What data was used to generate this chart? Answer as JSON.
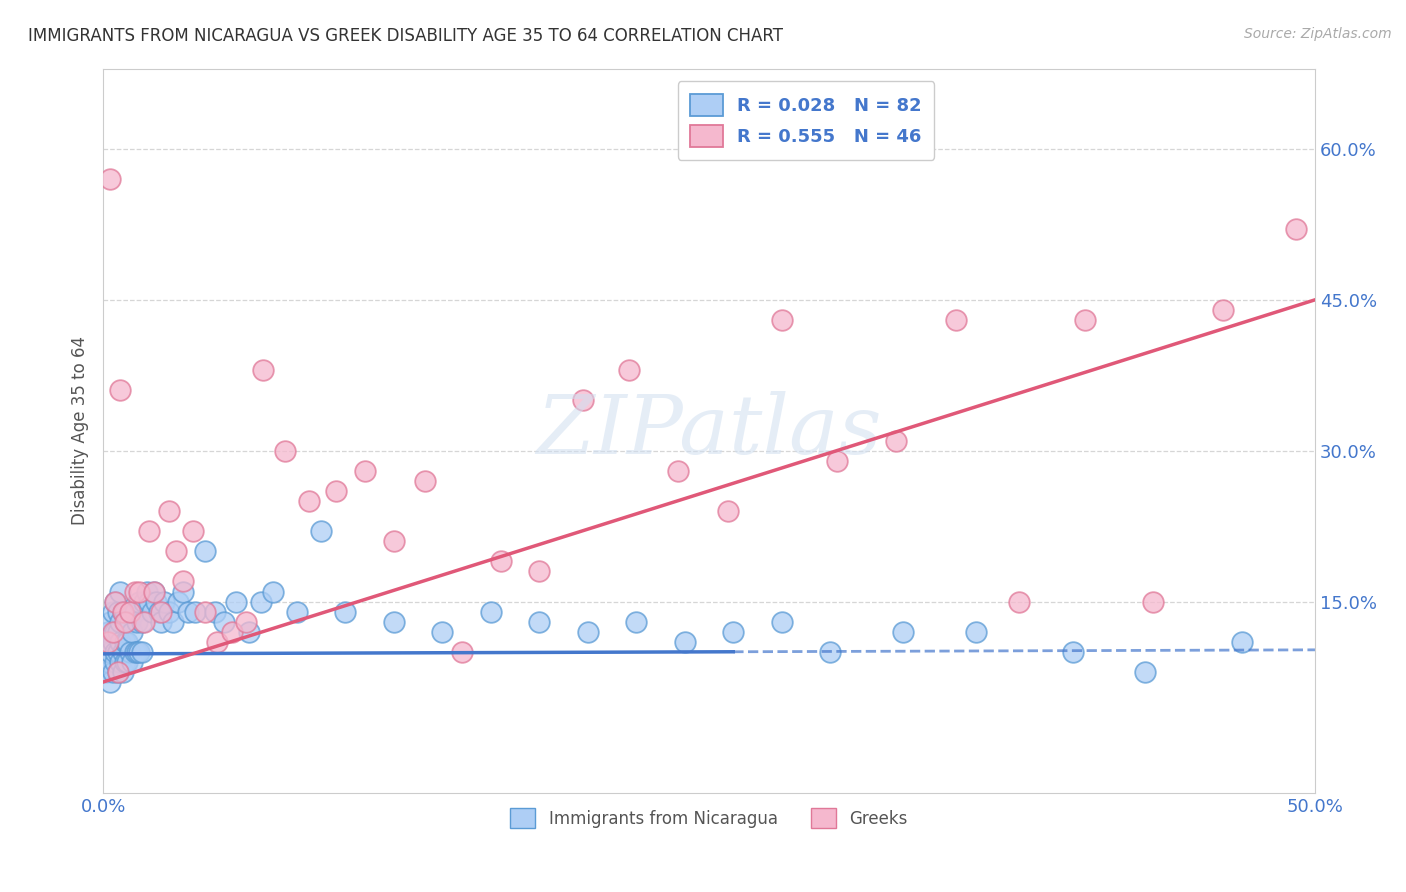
{
  "title": "IMMIGRANTS FROM NICARAGUA VS GREEK DISABILITY AGE 35 TO 64 CORRELATION CHART",
  "source": "Source: ZipAtlas.com",
  "ylabel": "Disability Age 35 to 64",
  "xlim": [
    0.0,
    0.5
  ],
  "ylim": [
    -0.04,
    0.68
  ],
  "xticks": [
    0.0,
    0.1,
    0.2,
    0.3,
    0.4,
    0.5
  ],
  "xticklabels": [
    "0.0%",
    "",
    "",
    "",
    "",
    "50.0%"
  ],
  "yticks": [
    0.15,
    0.3,
    0.45,
    0.6
  ],
  "yticklabels": [
    "15.0%",
    "30.0%",
    "45.0%",
    "60.0%"
  ],
  "legend_r1": "R = 0.028",
  "legend_n1": "N = 82",
  "legend_r2": "R = 0.555",
  "legend_n2": "N = 46",
  "color_nicaragua": "#aecef5",
  "color_greek": "#f5b8ce",
  "color_nicaragua_edge": "#5b9bd5",
  "color_greek_edge": "#e07898",
  "color_nicaragua_line": "#4477cc",
  "color_greek_line": "#e05878",
  "color_axis_labels": "#4477cc",
  "watermark_color": "#d0dff0",
  "background_color": "#ffffff",
  "grid_color": "#cccccc",
  "nicaragua_line_intercept": 0.098,
  "nicaragua_line_slope": 0.008,
  "nicaragua_line_solid_end": 0.26,
  "greek_line_intercept": 0.07,
  "greek_line_slope": 0.76,
  "nicaragua_x": [
    0.001,
    0.002,
    0.002,
    0.003,
    0.003,
    0.003,
    0.004,
    0.004,
    0.004,
    0.005,
    0.005,
    0.005,
    0.005,
    0.006,
    0.006,
    0.006,
    0.006,
    0.007,
    0.007,
    0.007,
    0.007,
    0.008,
    0.008,
    0.008,
    0.009,
    0.009,
    0.009,
    0.01,
    0.01,
    0.01,
    0.011,
    0.011,
    0.012,
    0.012,
    0.013,
    0.013,
    0.014,
    0.014,
    0.015,
    0.015,
    0.016,
    0.016,
    0.017,
    0.018,
    0.019,
    0.02,
    0.021,
    0.022,
    0.023,
    0.024,
    0.025,
    0.027,
    0.029,
    0.031,
    0.033,
    0.035,
    0.038,
    0.042,
    0.046,
    0.05,
    0.055,
    0.06,
    0.065,
    0.07,
    0.08,
    0.09,
    0.1,
    0.12,
    0.14,
    0.16,
    0.18,
    0.2,
    0.22,
    0.24,
    0.26,
    0.28,
    0.3,
    0.33,
    0.36,
    0.4,
    0.43,
    0.47
  ],
  "nicaragua_y": [
    0.08,
    0.09,
    0.12,
    0.07,
    0.1,
    0.13,
    0.08,
    0.11,
    0.14,
    0.09,
    0.1,
    0.12,
    0.15,
    0.08,
    0.1,
    0.12,
    0.14,
    0.09,
    0.11,
    0.13,
    0.16,
    0.08,
    0.1,
    0.14,
    0.09,
    0.11,
    0.14,
    0.09,
    0.11,
    0.13,
    0.1,
    0.13,
    0.09,
    0.12,
    0.1,
    0.14,
    0.1,
    0.13,
    0.1,
    0.15,
    0.1,
    0.13,
    0.15,
    0.16,
    0.15,
    0.14,
    0.16,
    0.15,
    0.14,
    0.13,
    0.15,
    0.14,
    0.13,
    0.15,
    0.16,
    0.14,
    0.14,
    0.2,
    0.14,
    0.13,
    0.15,
    0.12,
    0.15,
    0.16,
    0.14,
    0.22,
    0.14,
    0.13,
    0.12,
    0.14,
    0.13,
    0.12,
    0.13,
    0.11,
    0.12,
    0.13,
    0.1,
    0.12,
    0.12,
    0.1,
    0.08,
    0.11
  ],
  "greek_x": [
    0.002,
    0.003,
    0.004,
    0.005,
    0.006,
    0.007,
    0.008,
    0.009,
    0.011,
    0.013,
    0.015,
    0.017,
    0.019,
    0.021,
    0.024,
    0.027,
    0.03,
    0.033,
    0.037,
    0.042,
    0.047,
    0.053,
    0.059,
    0.066,
    0.075,
    0.085,
    0.096,
    0.108,
    0.12,
    0.133,
    0.148,
    0.164,
    0.18,
    0.198,
    0.217,
    0.237,
    0.258,
    0.28,
    0.303,
    0.327,
    0.352,
    0.378,
    0.405,
    0.433,
    0.462,
    0.492
  ],
  "greek_y": [
    0.11,
    0.57,
    0.12,
    0.15,
    0.08,
    0.36,
    0.14,
    0.13,
    0.14,
    0.16,
    0.16,
    0.13,
    0.22,
    0.16,
    0.14,
    0.24,
    0.2,
    0.17,
    0.22,
    0.14,
    0.11,
    0.12,
    0.13,
    0.38,
    0.3,
    0.25,
    0.26,
    0.28,
    0.21,
    0.27,
    0.1,
    0.19,
    0.18,
    0.35,
    0.38,
    0.28,
    0.24,
    0.43,
    0.29,
    0.31,
    0.43,
    0.15,
    0.43,
    0.15,
    0.44,
    0.52
  ]
}
